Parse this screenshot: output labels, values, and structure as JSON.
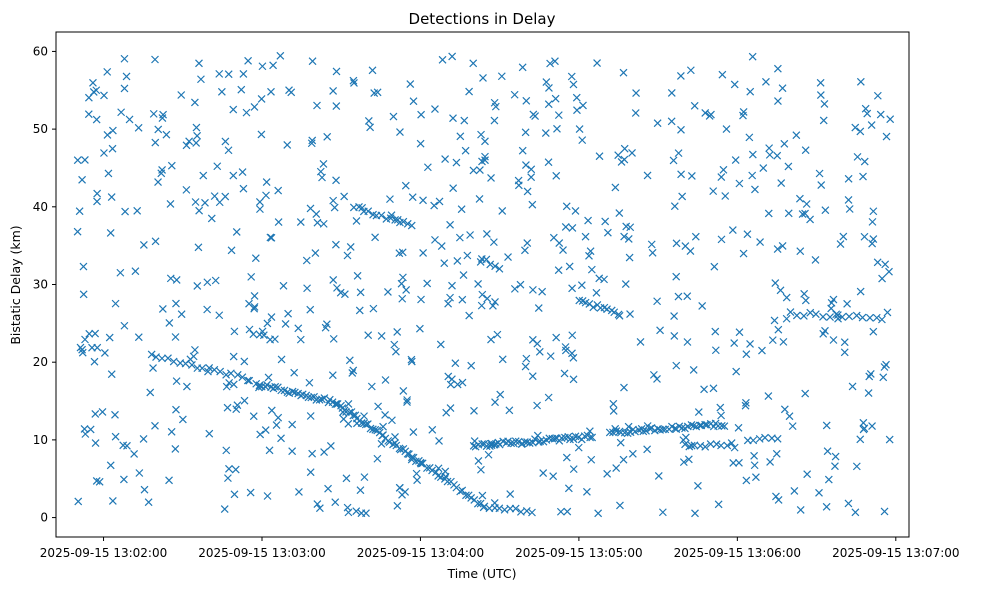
{
  "chart_data": {
    "type": "scatter",
    "title": "Detections in Delay",
    "xlabel": "Time (UTC)",
    "ylabel": "Bistatic Delay (km)",
    "marker": "x",
    "color": "#1f77b4",
    "grid": false,
    "xlim": [
      "2025-09-15 13:01:42",
      "2025-09-15 13:07:05"
    ],
    "ylim": [
      -2.5,
      62.5
    ],
    "x_ticks": [
      "2025-09-15 13:02:00",
      "2025-09-15 13:03:00",
      "2025-09-15 13:04:00",
      "2025-09-15 13:05:00",
      "2025-09-15 13:06:00",
      "2025-09-15 13:07:00"
    ],
    "y_ticks": [
      0,
      10,
      20,
      30,
      40,
      50,
      60
    ],
    "tracks": [
      {
        "start": [
          "2025-09-15 13:02:18",
          20.8
        ],
        "end": [
          "2025-09-15 13:02:55",
          17.8
        ],
        "count": 18
      },
      {
        "start": [
          "2025-09-15 13:02:58",
          17.2
        ],
        "end": [
          "2025-09-15 13:03:28",
          14.8
        ],
        "count": 30
      },
      {
        "start": [
          "2025-09-15 13:03:28",
          14.8
        ],
        "end": [
          "2025-09-15 13:04:00",
          7.0
        ],
        "count": 40
      },
      {
        "start": [
          "2025-09-15 13:04:00",
          7.0
        ],
        "end": [
          "2025-09-15 13:04:24",
          1.5
        ],
        "count": 22
      },
      {
        "start": [
          "2025-09-15 13:04:24",
          1.5
        ],
        "end": [
          "2025-09-15 13:04:42",
          0.8
        ],
        "count": 10
      },
      {
        "start": [
          "2025-09-15 13:04:20",
          9.3
        ],
        "end": [
          "2025-09-15 13:05:05",
          10.4
        ],
        "count": 45
      },
      {
        "start": [
          "2025-09-15 13:05:12",
          10.9
        ],
        "end": [
          "2025-09-15 13:05:55",
          12.0
        ],
        "count": 42
      },
      {
        "start": [
          "2025-09-15 13:05:40",
          9.2
        ],
        "end": [
          "2025-09-15 13:05:58",
          9.5
        ],
        "count": 10
      },
      {
        "start": [
          "2025-09-15 13:06:04",
          10.0
        ],
        "end": [
          "2025-09-15 13:06:15",
          10.1
        ],
        "count": 6
      },
      {
        "start": [
          "2025-09-15 13:03:35",
          40.0
        ],
        "end": [
          "2025-09-15 13:03:57",
          37.5
        ],
        "count": 14
      },
      {
        "start": [
          "2025-09-15 13:04:23",
          33.5
        ],
        "end": [
          "2025-09-15 13:04:30",
          32.0
        ],
        "count": 5
      },
      {
        "start": [
          "2025-09-15 13:05:00",
          27.8
        ],
        "end": [
          "2025-09-15 13:05:15",
          26.3
        ],
        "count": 12
      },
      {
        "start": [
          "2025-09-15 13:06:20",
          26.3
        ],
        "end": [
          "2025-09-15 13:06:55",
          25.6
        ],
        "count": 15
      },
      {
        "start": [
          "2025-09-15 13:02:55",
          24.0
        ],
        "end": [
          "2025-09-15 13:03:05",
          22.8
        ],
        "count": 6
      }
    ],
    "scatter": {
      "t_start": "2025-09-15 13:01:50",
      "t_end": "2025-09-15 13:06:58",
      "y_min": 0.5,
      "y_max": 59.8,
      "count": 760
    }
  }
}
